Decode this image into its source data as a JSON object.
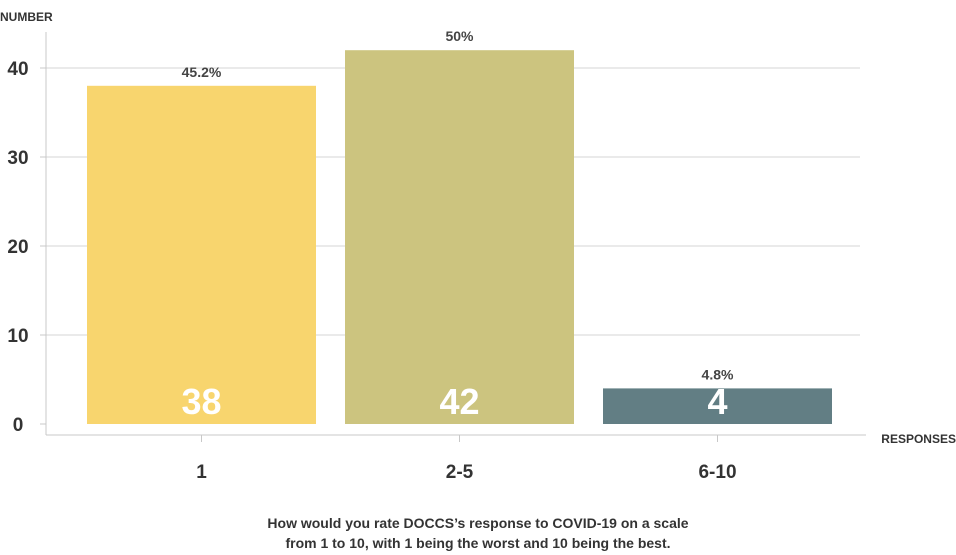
{
  "chart_data": {
    "type": "bar",
    "categories": [
      "1",
      "2-5",
      "6-10"
    ],
    "values": [
      38,
      42,
      4
    ],
    "percent_labels": [
      "45.2%",
      "50%",
      "4.8%"
    ],
    "colors": [
      "#f8d56e",
      "#ccc47f",
      "#627e84"
    ],
    "xlabel": "RESPONSES",
    "ylabel": "NUMBER",
    "yticks": [
      0,
      10,
      20,
      30,
      40
    ],
    "ylim": [
      0,
      44
    ],
    "grid": true,
    "title_lines": [
      "How would you rate DOCCS’s response to COVID-19 on a scale",
      "from 1 to 10, with 1 being the worst and 10 being the best."
    ]
  }
}
